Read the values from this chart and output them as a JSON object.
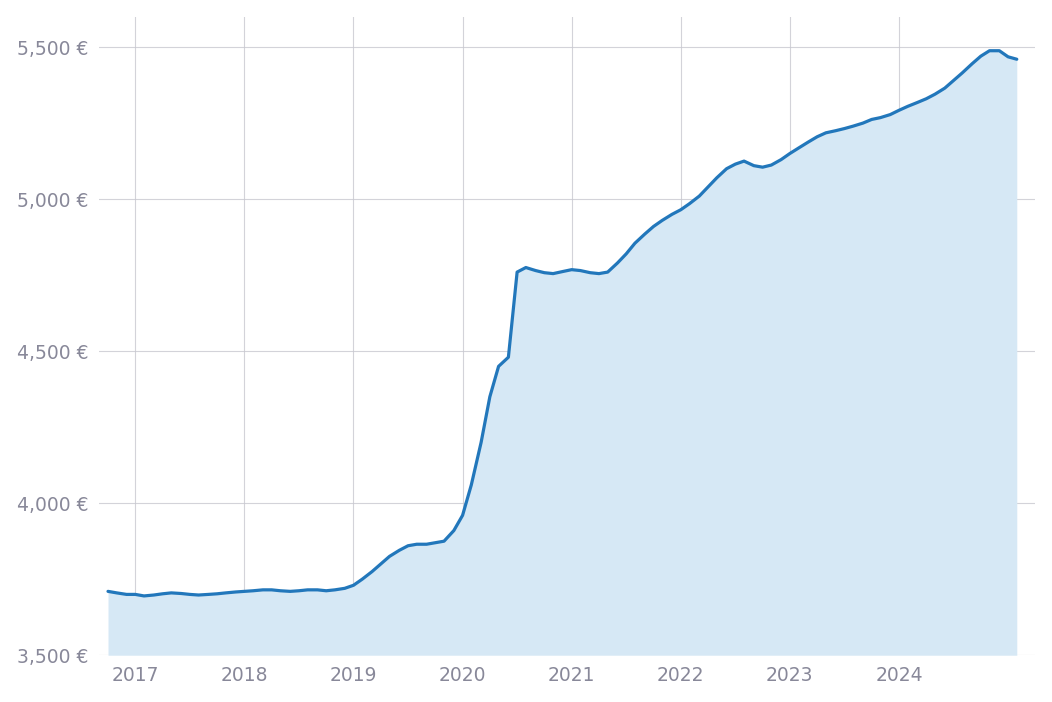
{
  "background_color": "#ffffff",
  "plot_bg_color": "#ffffff",
  "line_color": "#2277bb",
  "fill_color": "#d6e8f5",
  "grid_color": "#c8c8d0",
  "tick_label_color": "#888899",
  "ylim": [
    3500,
    5600
  ],
  "yticks": [
    3500,
    4000,
    4500,
    5000,
    5500
  ],
  "xlim_start": 2016.67,
  "xlim_end": 2025.25,
  "xticks": [
    2017,
    2018,
    2019,
    2020,
    2021,
    2022,
    2023,
    2024
  ],
  "data_x": [
    2016.75,
    2016.83,
    2016.92,
    2017.0,
    2017.08,
    2017.17,
    2017.25,
    2017.33,
    2017.42,
    2017.5,
    2017.58,
    2017.67,
    2017.75,
    2017.83,
    2017.92,
    2018.0,
    2018.08,
    2018.17,
    2018.25,
    2018.33,
    2018.42,
    2018.5,
    2018.58,
    2018.67,
    2018.75,
    2018.83,
    2018.92,
    2019.0,
    2019.08,
    2019.17,
    2019.25,
    2019.33,
    2019.42,
    2019.5,
    2019.58,
    2019.67,
    2019.75,
    2019.83,
    2019.92,
    2020.0,
    2020.08,
    2020.17,
    2020.25,
    2020.33,
    2020.42,
    2020.5,
    2020.58,
    2020.67,
    2020.75,
    2020.83,
    2020.92,
    2021.0,
    2021.08,
    2021.17,
    2021.25,
    2021.33,
    2021.42,
    2021.5,
    2021.58,
    2021.67,
    2021.75,
    2021.83,
    2021.92,
    2022.0,
    2022.08,
    2022.17,
    2022.25,
    2022.33,
    2022.42,
    2022.5,
    2022.58,
    2022.67,
    2022.75,
    2022.83,
    2022.92,
    2023.0,
    2023.08,
    2023.17,
    2023.25,
    2023.33,
    2023.42,
    2023.5,
    2023.58,
    2023.67,
    2023.75,
    2023.83,
    2023.92,
    2024.0,
    2024.08,
    2024.17,
    2024.25,
    2024.33,
    2024.42,
    2024.5,
    2024.58,
    2024.67,
    2024.75,
    2024.83,
    2024.92,
    2025.0,
    2025.08
  ],
  "data_y": [
    3710,
    3705,
    3700,
    3700,
    3695,
    3698,
    3702,
    3705,
    3703,
    3700,
    3698,
    3700,
    3702,
    3705,
    3708,
    3710,
    3712,
    3715,
    3715,
    3712,
    3710,
    3712,
    3715,
    3715,
    3712,
    3715,
    3720,
    3730,
    3750,
    3775,
    3800,
    3825,
    3845,
    3860,
    3865,
    3865,
    3870,
    3875,
    3910,
    3960,
    4060,
    4200,
    4350,
    4450,
    4480,
    4760,
    4775,
    4765,
    4758,
    4755,
    4762,
    4768,
    4765,
    4758,
    4755,
    4760,
    4790,
    4820,
    4855,
    4885,
    4910,
    4930,
    4950,
    4965,
    4985,
    5010,
    5040,
    5070,
    5100,
    5115,
    5125,
    5110,
    5105,
    5112,
    5130,
    5150,
    5168,
    5188,
    5205,
    5218,
    5225,
    5232,
    5240,
    5250,
    5262,
    5268,
    5278,
    5292,
    5305,
    5318,
    5330,
    5345,
    5365,
    5390,
    5415,
    5445,
    5470,
    5488,
    5488,
    5468,
    5460
  ]
}
